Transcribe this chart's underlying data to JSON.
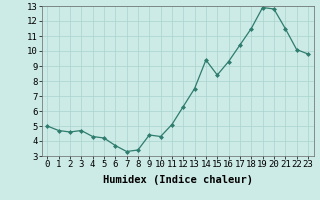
{
  "x": [
    0,
    1,
    2,
    3,
    4,
    5,
    6,
    7,
    8,
    9,
    10,
    11,
    12,
    13,
    14,
    15,
    16,
    17,
    18,
    19,
    20,
    21,
    22,
    23
  ],
  "y": [
    5.0,
    4.7,
    4.6,
    4.7,
    4.3,
    4.2,
    3.7,
    3.3,
    3.4,
    4.4,
    4.3,
    5.1,
    6.3,
    7.5,
    9.4,
    8.4,
    9.3,
    10.4,
    11.5,
    12.9,
    12.8,
    11.5,
    10.1,
    9.8
  ],
  "xlabel": "Humidex (Indice chaleur)",
  "ylim": [
    3,
    13
  ],
  "xlim": [
    -0.5,
    23.5
  ],
  "yticks": [
    3,
    4,
    5,
    6,
    7,
    8,
    9,
    10,
    11,
    12,
    13
  ],
  "xticks": [
    0,
    1,
    2,
    3,
    4,
    5,
    6,
    7,
    8,
    9,
    10,
    11,
    12,
    13,
    14,
    15,
    16,
    17,
    18,
    19,
    20,
    21,
    22,
    23
  ],
  "line_color": "#2e7d6e",
  "marker_color": "#2e7d6e",
  "bg_color": "#cceae6",
  "grid_color": "#aad4ce",
  "xlabel_fontsize": 7.5,
  "tick_fontsize": 6.5,
  "fig_width": 3.2,
  "fig_height": 2.0,
  "dpi": 100
}
